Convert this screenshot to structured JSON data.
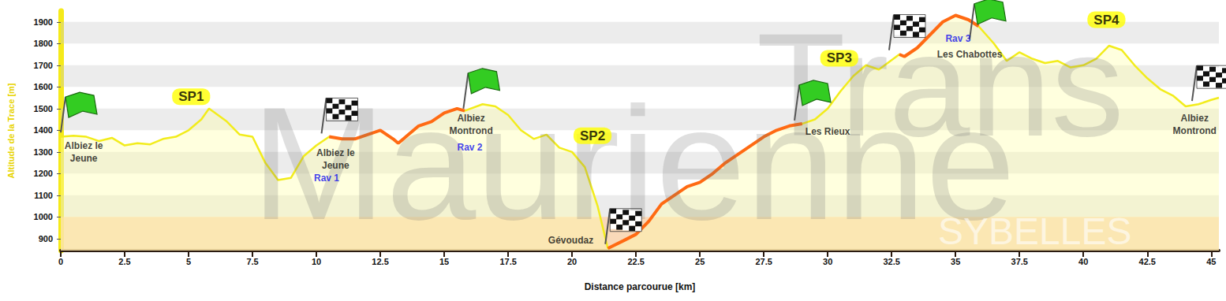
{
  "chart_data": {
    "type": "line",
    "x_label": "Distance parcourue [km]",
    "y_label": "Altitude de la Trace [m]",
    "x": [
      0,
      0.5,
      1,
      1.5,
      2,
      2.5,
      3,
      3.5,
      4,
      4.5,
      5,
      5.5,
      5.8,
      6.5,
      7,
      7.5,
      8,
      8.5,
      9,
      9.5,
      10,
      10.5,
      11,
      11.5,
      12,
      12.5,
      13,
      13.2,
      13.5,
      14,
      14.5,
      15,
      15.5,
      15.8,
      16.5,
      17,
      17.5,
      18,
      18.5,
      19,
      19.5,
      20,
      20.5,
      21,
      21.4,
      22,
      22.5,
      23,
      23.5,
      24,
      24.5,
      25,
      25.5,
      26,
      26.5,
      27,
      27.5,
      28,
      28.5,
      29,
      29.5,
      30,
      30.5,
      31,
      31.5,
      32,
      32.8,
      33,
      33.5,
      34,
      34.5,
      35,
      35.5,
      35.9,
      36.5,
      37,
      37.5,
      38,
      38.5,
      39,
      39.5,
      40,
      40.5,
      41,
      41.5,
      42,
      42.5,
      43,
      43.5,
      44,
      44.5,
      45,
      45.3
    ],
    "series": [
      {
        "color": "#f2ec1c",
        "line_style": "solid",
        "values": [
          1370,
          1375,
          1370,
          1350,
          1365,
          1330,
          1340,
          1335,
          1360,
          1370,
          1400,
          1450,
          1500,
          1440,
          1380,
          1370,
          1250,
          1170,
          1180,
          1280,
          1330,
          1370,
          1360,
          1360,
          1380,
          1400,
          1360,
          1340,
          1370,
          1420,
          1440,
          1480,
          1500,
          1490,
          1520,
          1510,
          1470,
          1400,
          1360,
          1380,
          1320,
          1300,
          1230,
          1050,
          855,
          890,
          920,
          980,
          1060,
          1100,
          1140,
          1160,
          1200,
          1250,
          1290,
          1330,
          1370,
          1400,
          1420,
          1430,
          1450,
          1500,
          1580,
          1650,
          1700,
          1680,
          1750,
          1740,
          1780,
          1840,
          1900,
          1930,
          1910,
          1880,
          1800,
          1720,
          1760,
          1730,
          1710,
          1720,
          1690,
          1700,
          1730,
          1790,
          1770,
          1700,
          1640,
          1590,
          1560,
          1510,
          1520,
          1540,
          1550
        ]
      },
      {
        "color": "#ff6a13",
        "line_style": "solid",
        "values": [
          null,
          null,
          null,
          null,
          null,
          null,
          null,
          null,
          null,
          null,
          null,
          null,
          null,
          null,
          null,
          null,
          null,
          null,
          null,
          null,
          null,
          1370,
          1360,
          1360,
          1380,
          1400,
          1360,
          1340,
          1370,
          1420,
          1440,
          1480,
          1500,
          1490,
          null,
          null,
          null,
          null,
          null,
          null,
          null,
          null,
          null,
          null,
          855,
          890,
          920,
          980,
          1060,
          1100,
          1140,
          1160,
          1200,
          1250,
          1290,
          1330,
          1370,
          1400,
          1420,
          1430,
          null,
          null,
          null,
          null,
          null,
          null,
          1750,
          1740,
          1780,
          1840,
          1900,
          1930,
          1910,
          1880,
          null,
          null,
          null,
          null,
          null,
          null,
          null,
          null,
          null,
          null,
          null,
          null,
          null,
          null,
          null,
          null,
          null,
          null,
          null
        ]
      }
    ],
    "xlim": [
      0,
      45.3
    ],
    "ylim": [
      845,
      1950
    ],
    "xticks": [
      0,
      2.5,
      5,
      7.5,
      10,
      12.5,
      15,
      17.5,
      20,
      22.5,
      25,
      27.5,
      30,
      32.5,
      35,
      37.5,
      40,
      42.5,
      45
    ],
    "yticks": [
      900,
      1000,
      1100,
      1200,
      1300,
      1400,
      1500,
      1600,
      1700,
      1800,
      1900
    ],
    "grid": true,
    "shaded_band": {
      "from": 845,
      "to": 1000,
      "color": "#f8cfa8"
    },
    "annotations": [
      {
        "text": "Trans",
        "x": 34.4,
        "y": 1610,
        "type": "watermark"
      },
      {
        "text": "Maurienne",
        "x": 22.4,
        "y": 1250,
        "type": "watermark"
      },
      {
        "text": "SYBELLES",
        "x": 38.1,
        "y": 935,
        "type": "watermark_light"
      },
      {
        "text": "SP1",
        "x": 5.1,
        "y": 1555,
        "type": "badge"
      },
      {
        "text": "SP2",
        "x": 20.8,
        "y": 1375,
        "type": "badge"
      },
      {
        "text": "SP3",
        "x": 30.45,
        "y": 1732,
        "type": "badge"
      },
      {
        "text": "SP4",
        "x": 40.9,
        "y": 1910,
        "type": "badge"
      },
      {
        "text": "Albiez le\nJeune",
        "x": 0.9,
        "y": 1300,
        "type": "place"
      },
      {
        "text": "Albiez le\nJeune",
        "x": 10.75,
        "y": 1265,
        "type": "place"
      },
      {
        "text": "Albiez\nMontrond",
        "x": 16.05,
        "y": 1425,
        "type": "place"
      },
      {
        "text": "Gévoudaz",
        "x": 19.95,
        "y": 893,
        "type": "place"
      },
      {
        "text": "Les Rieux",
        "x": 30.0,
        "y": 1393,
        "type": "place"
      },
      {
        "text": "Les Chabottes",
        "x": 35.55,
        "y": 1750,
        "type": "place"
      },
      {
        "text": "Albiez\nMontrond",
        "x": 44.35,
        "y": 1425,
        "type": "place"
      },
      {
        "text": "Rav 1",
        "x": 10.4,
        "y": 1178,
        "type": "rav"
      },
      {
        "text": "Rav 2",
        "x": 16.0,
        "y": 1321,
        "type": "rav"
      },
      {
        "text": "Rav 3",
        "x": 35.1,
        "y": 1821,
        "type": "rav"
      }
    ],
    "flags": [
      {
        "x": 0,
        "y": 1390,
        "marker": "green"
      },
      {
        "x": 10.2,
        "y": 1385,
        "marker": "checkered"
      },
      {
        "x": 15.75,
        "y": 1500,
        "marker": "green"
      },
      {
        "x": 21.3,
        "y": 875,
        "marker": "checkered"
      },
      {
        "x": 28.7,
        "y": 1445,
        "marker": "green"
      },
      {
        "x": 32.4,
        "y": 1770,
        "marker": "checkered"
      },
      {
        "x": 35.55,
        "y": 1820,
        "marker": "green"
      },
      {
        "x": 44.25,
        "y": 1535,
        "marker": "checkered"
      }
    ]
  }
}
